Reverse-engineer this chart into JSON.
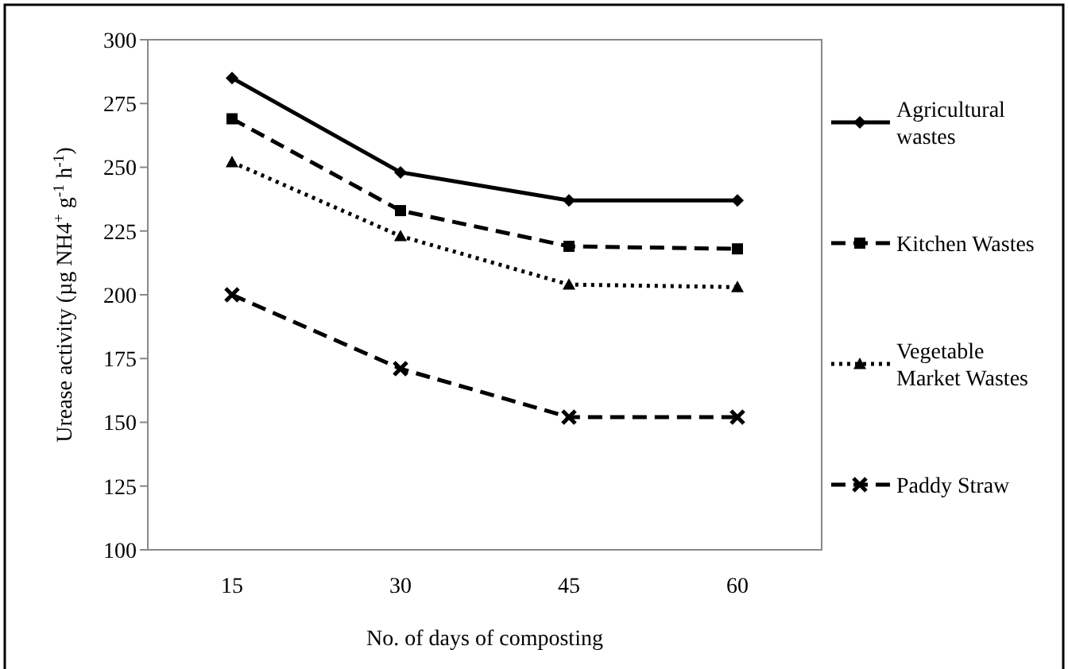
{
  "chart_data": {
    "type": "line",
    "xlabel": "No. of days of composting",
    "ylabel": "Urease activity (µg NH4$^{+}$ g$^{-1}$ h$^{-1}$)",
    "categories": [
      "15",
      "30",
      "45",
      "60"
    ],
    "ylim": [
      100,
      300
    ],
    "yticks": [
      100,
      125,
      150,
      175,
      200,
      225,
      250,
      275,
      300
    ],
    "grid": false,
    "legend": "right",
    "series": [
      {
        "name": "Agricultural wastes",
        "color": "#000000",
        "values": [
          285,
          248,
          237,
          237
        ],
        "marker": "diamond",
        "line_style": "solid"
      },
      {
        "name": "Kitchen Wastes",
        "color": "#000000",
        "values": [
          269,
          233,
          219,
          218
        ],
        "marker": "square",
        "line_style": "dashed"
      },
      {
        "name": "Vegetable Market Wastes",
        "color": "#000000",
        "values": [
          252,
          223,
          204,
          203
        ],
        "marker": "triangle",
        "line_style": "dotted"
      },
      {
        "name": "Paddy Straw",
        "color": "#000000",
        "values": [
          200,
          171,
          152,
          152
        ],
        "marker": "cross",
        "line_style": "dashed"
      }
    ]
  }
}
